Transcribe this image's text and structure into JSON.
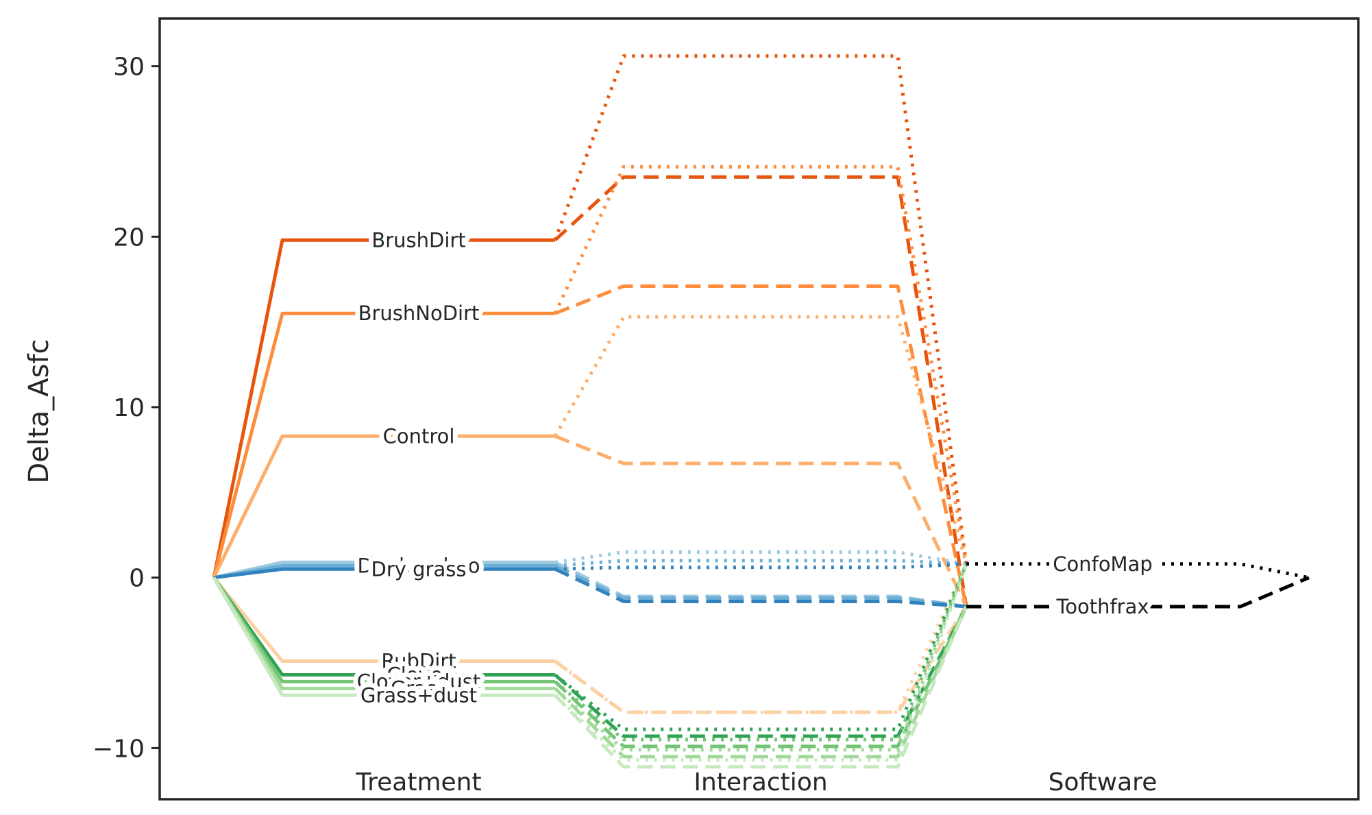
{
  "chart_data": {
    "type": "line",
    "title": "",
    "ylabel": "Delta_Asfc",
    "ylim": [
      -13.0,
      32.8
    ],
    "yticks": [
      30,
      20,
      10,
      0,
      -10
    ],
    "ytick_labels": [
      "30",
      "20",
      "10",
      "0",
      "−10"
    ],
    "grid": false,
    "group_labels": [
      "Treatment",
      "Interaction",
      "Software"
    ],
    "treatments": [
      {
        "name": "BrushDirt",
        "value": 19.8,
        "color": "#e6550d",
        "labeled": true
      },
      {
        "name": "BrushNoDirt",
        "value": 15.5,
        "color": "#fd8d3c",
        "labeled": true
      },
      {
        "name": "Control",
        "value": 8.3,
        "color": "#fdae6b",
        "labeled": true
      },
      {
        "name": "Dry lucerne",
        "value": 0.9,
        "color": "#9ecae1",
        "labeled": true
      },
      {
        "name": "Dry bamboo",
        "value": 0.7,
        "color": "#6baed6",
        "labeled": true
      },
      {
        "name": "Dry grass",
        "value": 0.5,
        "color": "#3182bd",
        "labeled": true
      },
      {
        "name": "RubDirt",
        "value": -4.9,
        "color": "#fdd0a2",
        "labeled": true
      },
      {
        "name": "Clover",
        "value": -5.7,
        "color": "#31a354",
        "labeled": true
      },
      {
        "name": "Clover+dust",
        "value": -6.1,
        "color": "#74c476",
        "labeled": true
      },
      {
        "name": "Grass",
        "value": -6.5,
        "color": "#a1d99b",
        "labeled": true
      },
      {
        "name": "Grass+dust",
        "value": -6.9,
        "color": "#c7e9c0",
        "labeled": true
      }
    ],
    "interactions": [
      {
        "treatment": "BrushDirt",
        "software": "ConfoMap",
        "value": 30.6
      },
      {
        "treatment": "BrushDirt",
        "software": "Toothfrax",
        "value": 23.5
      },
      {
        "treatment": "BrushNoDirt",
        "software": "ConfoMap",
        "value": 24.1
      },
      {
        "treatment": "BrushNoDirt",
        "software": "Toothfrax",
        "value": 17.1
      },
      {
        "treatment": "Control",
        "software": "ConfoMap",
        "value": 15.3
      },
      {
        "treatment": "Control",
        "software": "Toothfrax",
        "value": 6.7
      },
      {
        "treatment": "Dry lucerne",
        "software": "ConfoMap",
        "value": 1.5
      },
      {
        "treatment": "Dry lucerne",
        "software": "Toothfrax",
        "value": -1.1
      },
      {
        "treatment": "Dry bamboo",
        "software": "ConfoMap",
        "value": 1.0
      },
      {
        "treatment": "Dry bamboo",
        "software": "Toothfrax",
        "value": -1.2
      },
      {
        "treatment": "Dry grass",
        "software": "ConfoMap",
        "value": 0.6
      },
      {
        "treatment": "Dry grass",
        "software": "Toothfrax",
        "value": -1.4
      },
      {
        "treatment": "RubDirt",
        "software": "ConfoMap",
        "value": -7.9
      },
      {
        "treatment": "RubDirt",
        "software": "Toothfrax",
        "value": -7.9
      },
      {
        "treatment": "Clover",
        "software": "ConfoMap",
        "value": -8.9
      },
      {
        "treatment": "Clover",
        "software": "Toothfrax",
        "value": -9.3
      },
      {
        "treatment": "Clover+dust",
        "software": "ConfoMap",
        "value": -9.5
      },
      {
        "treatment": "Clover+dust",
        "software": "Toothfrax",
        "value": -9.9
      },
      {
        "treatment": "Grass",
        "software": "ConfoMap",
        "value": -10.1
      },
      {
        "treatment": "Grass",
        "software": "Toothfrax",
        "value": -10.5
      },
      {
        "treatment": "Grass+dust",
        "software": "ConfoMap",
        "value": -10.7
      },
      {
        "treatment": "Grass+dust",
        "software": "Toothfrax",
        "value": -11.1
      }
    ],
    "softwares": [
      {
        "name": "ConfoMap",
        "value": 0.8,
        "color": "#000000",
        "dash": "dotted"
      },
      {
        "name": "Toothfrax",
        "value": -1.7,
        "color": "#000000",
        "dash": "dashed"
      }
    ]
  }
}
